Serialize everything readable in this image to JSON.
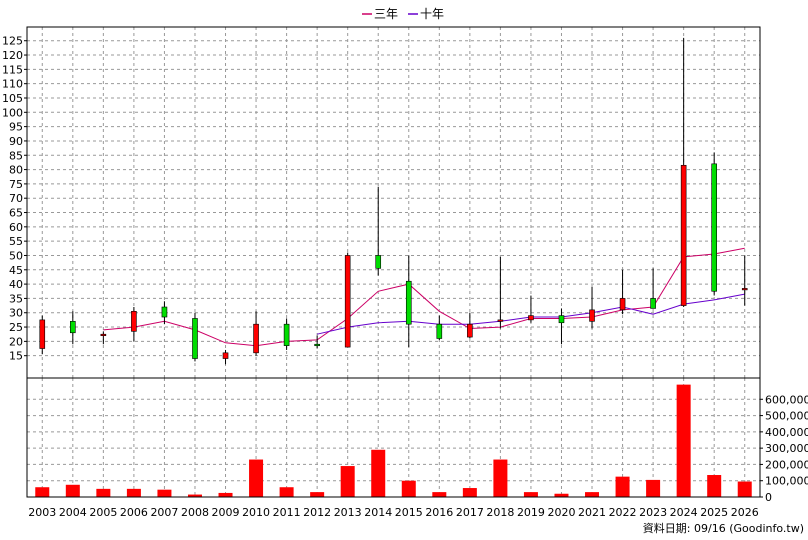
{
  "chart_data": [
    {
      "type": "candlestick",
      "title": "",
      "legend": {
        "position": "top-center",
        "entries": [
          {
            "name": "三年",
            "color": "#cc0066"
          },
          {
            "name": "十年",
            "color": "#6600cc"
          }
        ]
      },
      "x": [
        "2003",
        "2004",
        "2005",
        "2006",
        "2007",
        "2008",
        "2009",
        "2010",
        "2011",
        "2012",
        "2013",
        "2014",
        "2015",
        "2016",
        "2017",
        "2018",
        "2019",
        "2020",
        "2021",
        "2022",
        "2023",
        "2024",
        "2025",
        "2026"
      ],
      "yticks": [
        15,
        20,
        25,
        30,
        35,
        40,
        45,
        50,
        55,
        60,
        65,
        70,
        75,
        80,
        85,
        90,
        95,
        100,
        105,
        110,
        115,
        120,
        125
      ],
      "ylim": [
        10,
        127
      ],
      "grid": true,
      "up_color": "#ff0000",
      "down_color": "#00dd00",
      "ohlc": [
        {
          "open": 17.5,
          "high": 29,
          "low": 15.5,
          "close": 27.5
        },
        {
          "open": 27,
          "high": 30.5,
          "low": 19,
          "close": 23
        },
        {
          "open": 22.5,
          "high": 23.5,
          "low": 19,
          "close": 22.5
        },
        {
          "open": 23.5,
          "high": 32,
          "low": 20,
          "close": 30.5
        },
        {
          "open": 32,
          "high": 34,
          "low": 26,
          "close": 28.5
        },
        {
          "open": 28,
          "high": 30,
          "low": 13,
          "close": 14
        },
        {
          "open": 14,
          "high": 17,
          "low": 12,
          "close": 16
        },
        {
          "open": 16,
          "high": 30.5,
          "low": 15,
          "close": 26
        },
        {
          "open": 26,
          "high": 28,
          "low": 17,
          "close": 18.5
        },
        {
          "open": 19,
          "high": 22,
          "low": 17.5,
          "close": 18.5
        },
        {
          "open": 18,
          "high": 51,
          "low": 18,
          "close": 50
        },
        {
          "open": 50,
          "high": 74,
          "low": 43,
          "close": 45.5
        },
        {
          "open": 41,
          "high": 50,
          "low": 18,
          "close": 26
        },
        {
          "open": 26,
          "high": 29,
          "low": 20.5,
          "close": 21
        },
        {
          "open": 21.5,
          "high": 30,
          "low": 21,
          "close": 26
        },
        {
          "open": 27,
          "high": 49.5,
          "low": 24.5,
          "close": 27.5
        },
        {
          "open": 27.5,
          "high": 36,
          "low": 26.5,
          "close": 29
        },
        {
          "open": 29,
          "high": 31.5,
          "low": 19,
          "close": 26.5
        },
        {
          "open": 27,
          "high": 39,
          "low": 24.5,
          "close": 31
        },
        {
          "open": 31,
          "high": 45,
          "low": 29.5,
          "close": 35
        },
        {
          "open": 35,
          "high": 45.5,
          "low": 31.5,
          "close": 31.5
        },
        {
          "open": 32.5,
          "high": 126,
          "low": 32,
          "close": 81.5
        },
        {
          "open": 82,
          "high": 86,
          "low": 36,
          "close": 37.5
        },
        {
          "open": 38.5,
          "high": 50,
          "low": 32.5,
          "close": 38.5
        }
      ],
      "series": [
        {
          "name": "三年",
          "color": "#cc0066",
          "values": [
            null,
            null,
            24,
            25,
            27,
            24,
            19.5,
            18.5,
            20,
            20.5,
            28,
            37.5,
            40,
            30.5,
            24.5,
            25,
            28,
            28,
            28.5,
            31,
            32,
            49.5,
            50.5,
            52.5
          ]
        },
        {
          "name": "十年",
          "color": "#6600cc",
          "values": [
            null,
            null,
            null,
            null,
            null,
            null,
            null,
            null,
            null,
            22.5,
            25,
            26.5,
            27,
            26,
            26,
            27,
            28.5,
            28.5,
            30,
            32,
            29.5,
            33,
            34.5,
            36.5
          ]
        }
      ]
    },
    {
      "type": "bar",
      "title": "",
      "categories": [
        "2003",
        "2004",
        "2005",
        "2006",
        "2007",
        "2008",
        "2009",
        "2010",
        "2011",
        "2012",
        "2013",
        "2014",
        "2015",
        "2016",
        "2017",
        "2018",
        "2019",
        "2020",
        "2021",
        "2022",
        "2023",
        "2024",
        "2025",
        "2026"
      ],
      "values": [
        60000,
        75000,
        50000,
        50000,
        45000,
        15000,
        25000,
        230000,
        60000,
        30000,
        190000,
        290000,
        100000,
        30000,
        55000,
        230000,
        30000,
        20000,
        30000,
        125000,
        105000,
        690000,
        135000,
        95000
      ],
      "yticks": [
        0,
        100000,
        200000,
        300000,
        400000,
        500000,
        600000
      ],
      "yticklabels": [
        "0",
        "100,000",
        "200,000",
        "300,000",
        "400,000",
        "500,000",
        "600,000"
      ],
      "ylim": [
        0,
        700000
      ],
      "color": "#ff0000",
      "grid": true
    }
  ],
  "footer": {
    "source_text": "資料日期: 09/16  (Goodinfo.tw)"
  }
}
